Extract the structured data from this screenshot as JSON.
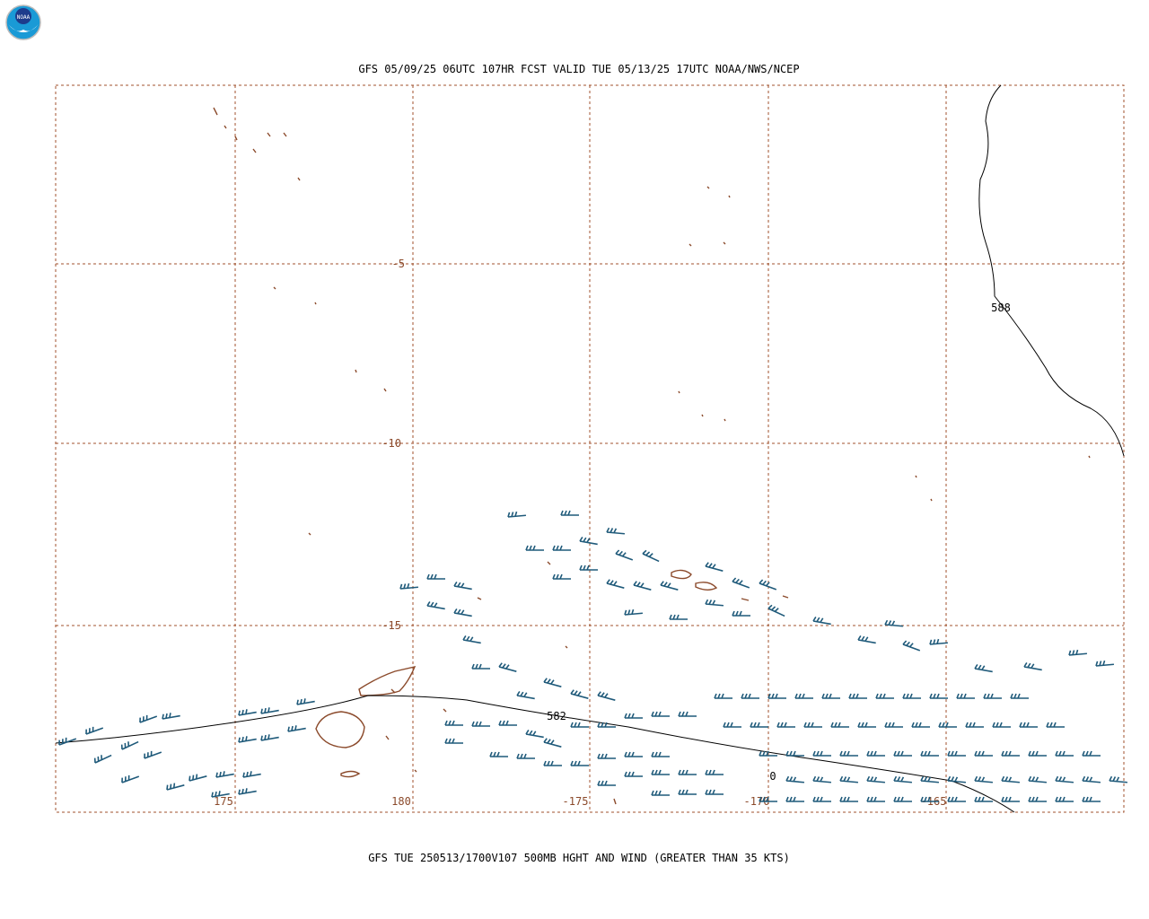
{
  "header": {
    "title": "GFS 05/09/25 06UTC 107HR FCST VALID TUE 05/13/25 17UTC NOAA/NWS/NCEP"
  },
  "footer": {
    "caption": "GFS TUE 250513/1700V107 500MB HGHT AND WIND (GREATER THAN 35 KTS)"
  },
  "map": {
    "lat_labels": [
      "-5",
      "-10",
      "-15"
    ],
    "lon_labels": [
      "175",
      "180",
      "-175",
      "-170",
      "-165"
    ],
    "contour_labels": [
      "588",
      "582",
      "0"
    ]
  }
}
